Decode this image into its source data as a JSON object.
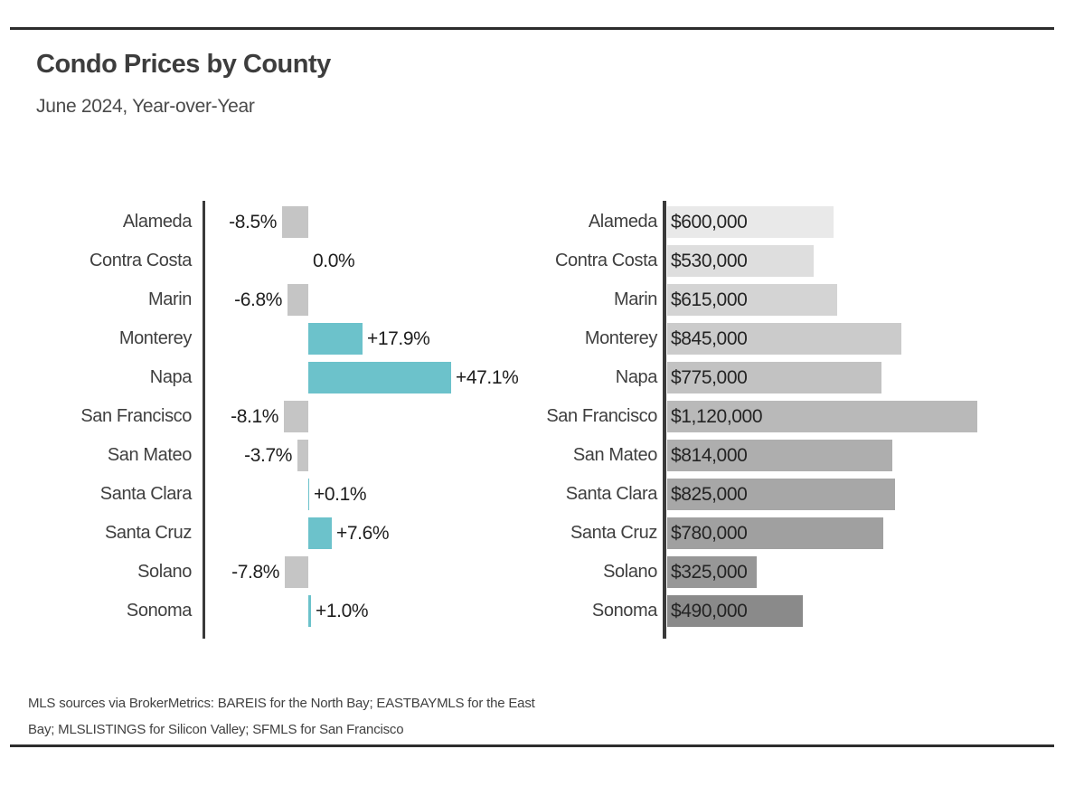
{
  "header": {
    "title": "Condo Prices by County",
    "subtitle": "June 2024, Year-over-Year"
  },
  "footnote": {
    "line1": "MLS sources via BrokerMetrics: BAREIS for the North Bay; EASTBAYMLS for the East",
    "line2": "Bay; MLSLISTINGS for Silicon Valley; SFMLS for San Francisco"
  },
  "colors": {
    "positive_bar": "#6cc2cb",
    "negative_bar": "#c5c5c5",
    "axis": "#3a3a3a",
    "rule": "#2d2d2d",
    "price_shades": [
      "#e9e9e9",
      "#dedede",
      "#d4d4d4",
      "#cbcbcb",
      "#c2c2c2",
      "#b9b9b9",
      "#aeaeae",
      "#a7a7a7",
      "#a0a0a0",
      "#979797",
      "#8a8a8a"
    ]
  },
  "chart_data": [
    {
      "type": "bar",
      "orientation": "horizontal",
      "name": "year-over-year-percent-change",
      "categories": [
        "Alameda",
        "Contra Costa",
        "Marin",
        "Monterey",
        "Napa",
        "San Francisco",
        "San Mateo",
        "Santa Clara",
        "Santa Cruz",
        "Solano",
        "Sonoma"
      ],
      "values": [
        -8.5,
        0.0,
        -6.8,
        17.9,
        47.1,
        -8.1,
        -3.7,
        0.1,
        7.6,
        -7.8,
        1.0
      ],
      "labels": [
        "-8.5%",
        "0.0%",
        "-6.8%",
        "+17.9%",
        "+47.1%",
        "-8.1%",
        "-3.7%",
        "+0.1%",
        "+7.6%",
        "-7.8%",
        "+1.0%"
      ],
      "unit": "%",
      "xlim": [
        -10,
        50
      ],
      "grid": false,
      "legend": false
    },
    {
      "type": "bar",
      "orientation": "horizontal",
      "name": "median-condo-price",
      "categories": [
        "Alameda",
        "Contra Costa",
        "Marin",
        "Monterey",
        "Napa",
        "San Francisco",
        "San Mateo",
        "Santa Clara",
        "Santa Cruz",
        "Solano",
        "Sonoma"
      ],
      "values": [
        600000,
        530000,
        615000,
        845000,
        775000,
        1120000,
        814000,
        825000,
        780000,
        325000,
        490000
      ],
      "labels": [
        "$600,000",
        "$530,000",
        "$615,000",
        "$845,000",
        "$775,000",
        "$1,120,000",
        "$814,000",
        "$825,000",
        "$780,000",
        "$325,000",
        "$490,000"
      ],
      "unit": "USD",
      "xlim": [
        0,
        1200000
      ],
      "grid": false,
      "legend": false
    }
  ]
}
